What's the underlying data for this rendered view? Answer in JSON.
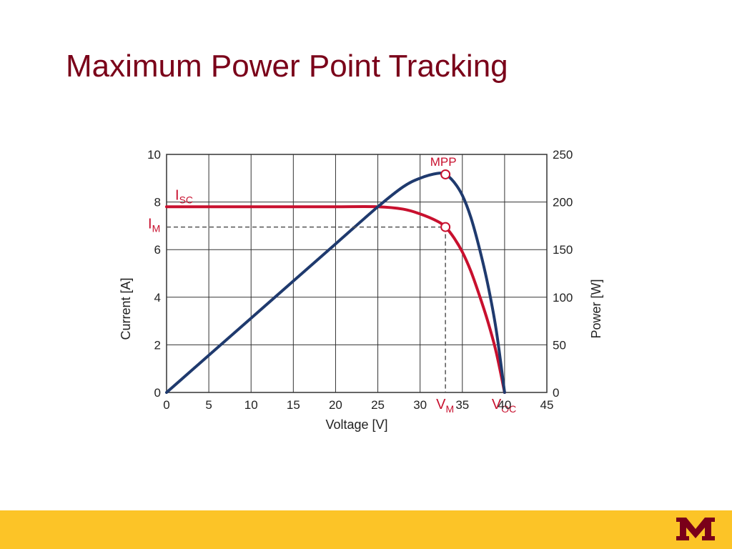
{
  "slide": {
    "title": "Maximum Power Point Tracking",
    "footer_color": "#fcc427",
    "title_color": "#7a0019",
    "logo": "university-block-m-logo"
  },
  "chart_data": {
    "type": "line",
    "x": [
      0,
      5,
      10,
      15,
      20,
      25,
      28,
      30,
      32,
      33,
      34,
      35,
      36,
      37,
      38,
      39,
      40
    ],
    "series": [
      {
        "axis": "left",
        "color": "#c8102e",
        "values": [
          7.8,
          7.8,
          7.8,
          7.8,
          7.8,
          7.8,
          7.7,
          7.5,
          7.2,
          6.95,
          6.5,
          5.9,
          5.1,
          4.1,
          3.0,
          1.7,
          0.0
        ]
      },
      {
        "axis": "right",
        "color": "#1f3a6e",
        "values": [
          0,
          39,
          78,
          117,
          156,
          195,
          216,
          225,
          230,
          229,
          221,
          207,
          184,
          152,
          114,
          66,
          0
        ]
      }
    ],
    "xlabel": "Voltage [V]",
    "ylabel_left": "Current [A]",
    "ylabel_right": "Power [W]",
    "xlim": [
      0,
      45
    ],
    "ylim_left": [
      0,
      10
    ],
    "ylim_right": [
      0,
      250
    ],
    "x_ticks": [
      "0",
      "5",
      "10",
      "15",
      "20",
      "25",
      "30",
      "35",
      "40",
      "45"
    ],
    "y_left_ticks": [
      "0",
      "2",
      "4",
      "6",
      "8",
      "10"
    ],
    "y_right_ticks": [
      "0",
      "50",
      "100",
      "150",
      "200",
      "250"
    ],
    "grid": true,
    "annotations": {
      "mpp": {
        "label": "MPP",
        "x": 33,
        "y": 229
      },
      "im_point": {
        "x": 33,
        "y": 6.95
      },
      "isc": {
        "label": "I",
        "sub": "SC"
      },
      "im": {
        "label": "I",
        "sub": "M"
      },
      "vm": {
        "label": "V",
        "sub": "M"
      },
      "voc": {
        "label": "V",
        "sub": "OC"
      }
    }
  }
}
